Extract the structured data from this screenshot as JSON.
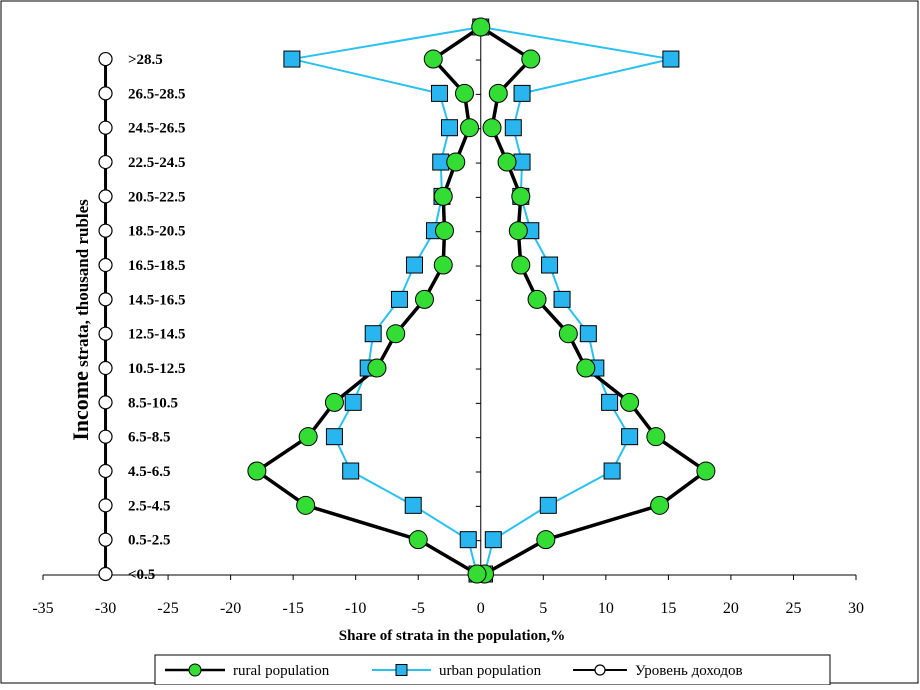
{
  "colors": {
    "rural_fill": "#33dd33",
    "rural_line": "#000000",
    "urban_fill": "#29b6f0",
    "urban_line": "#29c1f0",
    "income_marker": "#ffffff"
  },
  "chart_data": {
    "type": "line",
    "title": "",
    "xlabel": "Share of strata in the population,%",
    "ylabel_big": "Income",
    "ylabel_small": " strata, thousand rubles",
    "xlim": [
      -35,
      30
    ],
    "xticks": [
      "-35",
      "-30",
      "-25",
      "-20",
      "-15",
      "-10",
      "-5",
      "0",
      "5",
      "10",
      "15",
      "20",
      "25",
      "30"
    ],
    "xtick_values": [
      -35,
      -30,
      -25,
      -20,
      -15,
      -10,
      -5,
      0,
      5,
      10,
      15,
      20,
      25,
      30
    ],
    "categories": [
      "<0.5",
      "0.5-2.5",
      "2.5-4.5",
      "4.5-6.5",
      "6.5-8.5",
      "8.5-10.5",
      "10.5-12.5",
      "12.5-14.5",
      "14.5-16.5",
      "16.5-18.5",
      "18.5-20.5",
      "20.5-22.5",
      "22.5-24.5",
      "24.5-26.5",
      "26.5-28.5",
      ">28.5"
    ],
    "legend_position": "bottom",
    "grid": false,
    "series": [
      {
        "name": "rural population",
        "marker": "circle",
        "right": [
          0.3,
          5.2,
          14.3,
          18.0,
          14.0,
          11.9,
          8.4,
          7.0,
          4.5,
          3.2,
          3.0,
          3.2,
          2.1,
          0.9,
          1.4,
          4.0,
          0.0
        ],
        "left": [
          -0.3,
          -5.0,
          -14.0,
          -17.9,
          -13.8,
          -11.7,
          -8.3,
          -6.8,
          -4.5,
          -3.0,
          -2.9,
          -3.0,
          -2.0,
          -0.9,
          -1.3,
          -3.8
        ]
      },
      {
        "name": "urban population",
        "marker": "square",
        "right": [
          0.3,
          1.0,
          5.4,
          10.5,
          11.9,
          10.3,
          9.2,
          8.6,
          6.5,
          5.5,
          4.0,
          3.2,
          3.3,
          2.6,
          3.3,
          15.2,
          0.0
        ],
        "left": [
          -0.3,
          -1.0,
          -5.4,
          -10.4,
          -11.7,
          -10.2,
          -9.0,
          -8.6,
          -6.5,
          -5.3,
          -3.7,
          -3.1,
          -3.2,
          -2.5,
          -3.3,
          -15.1
        ]
      },
      {
        "name": "Уровень доходов",
        "marker": "open-circle",
        "x_value": -30
      }
    ],
    "legend": [
      "rural population",
      "urban population",
      "Уровень доходов"
    ]
  }
}
